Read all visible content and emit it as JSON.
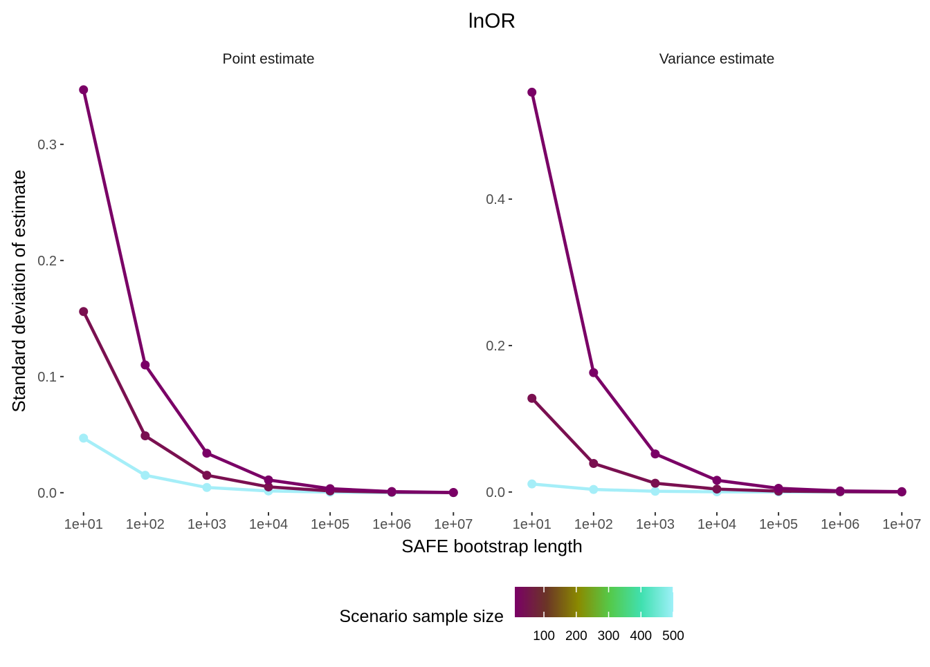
{
  "figure": {
    "title": "lnOR",
    "xlabel": "SAFE bootstrap length",
    "ylabel": "Standard deviation of estimate"
  },
  "legend": {
    "title": "Scenario sample size",
    "placement": "bottom",
    "ticks": [
      100,
      200,
      300,
      400,
      500
    ],
    "range": [
      10,
      500
    ],
    "gradient": [
      "#7a0066",
      "#6b3526",
      "#8a8a00",
      "#55c94a",
      "#40e0b0",
      "#9ef0f8"
    ]
  },
  "chart_data": [
    {
      "type": "line",
      "title": "Point estimate",
      "x": [
        10,
        100,
        1000,
        10000,
        100000,
        1000000,
        10000000
      ],
      "x_tick_labels": [
        "1e+01",
        "1e+02",
        "1e+03",
        "1e+04",
        "1e+05",
        "1e+06",
        "1e+07"
      ],
      "xscale": "log10",
      "ylim": [
        -0.012,
        0.36
      ],
      "y_ticks": [
        0.0,
        0.1,
        0.2,
        0.3
      ],
      "y_tick_labels": [
        "0.0",
        "0.1",
        "0.2",
        "0.3"
      ],
      "grid": false,
      "series": [
        {
          "sample_size": 20,
          "color": "#7a0066",
          "values": [
            0.347,
            0.11,
            0.034,
            0.011,
            0.0035,
            0.001,
            0.0002
          ]
        },
        {
          "sample_size": 50,
          "color": "#7a1050",
          "values": [
            0.156,
            0.049,
            0.015,
            0.005,
            0.0015,
            0.0005,
            0.0001
          ]
        },
        {
          "sample_size": 500,
          "color": "#a5eef8",
          "values": [
            0.047,
            0.015,
            0.0045,
            0.0015,
            0.0005,
            0.0001,
            0.0
          ]
        }
      ]
    },
    {
      "type": "line",
      "title": "Variance estimate",
      "x": [
        10,
        100,
        1000,
        10000,
        100000,
        1000000,
        10000000
      ],
      "x_tick_labels": [
        "1e+01",
        "1e+02",
        "1e+03",
        "1e+04",
        "1e+05",
        "1e+06",
        "1e+07"
      ],
      "xscale": "log10",
      "ylim": [
        -0.02,
        0.57
      ],
      "y_ticks": [
        0.0,
        0.2,
        0.4
      ],
      "y_tick_labels": [
        "0.0",
        "0.2",
        "0.4"
      ],
      "grid": false,
      "series": [
        {
          "sample_size": 20,
          "color": "#7a0066",
          "values": [
            0.546,
            0.163,
            0.052,
            0.016,
            0.005,
            0.0015,
            0.0005
          ]
        },
        {
          "sample_size": 50,
          "color": "#7a1050",
          "values": [
            0.128,
            0.039,
            0.012,
            0.004,
            0.0012,
            0.0004,
            0.0001
          ]
        },
        {
          "sample_size": 500,
          "color": "#a5eef8",
          "values": [
            0.011,
            0.0035,
            0.001,
            0.0003,
            0.0001,
            0.0,
            0.0
          ]
        }
      ]
    }
  ]
}
